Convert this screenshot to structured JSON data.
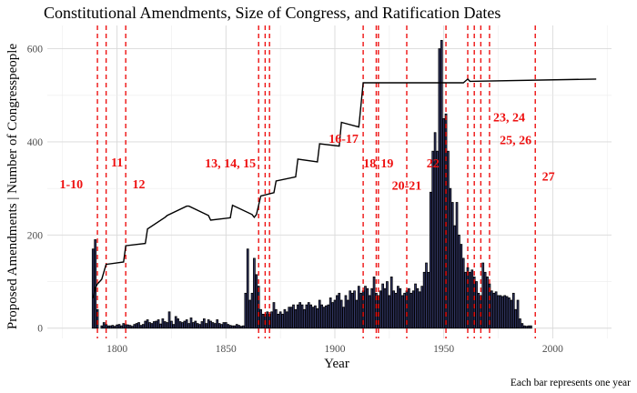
{
  "chart_data": {
    "type": "bar",
    "title": "Constitutional Amendments, Size of Congress, and Ratification Dates",
    "xlabel": "Year",
    "ylabel": "Proposed Amendments | Number of Congresspeople",
    "caption": "Each bar represents one year",
    "xlim": [
      1768,
      2027
    ],
    "ylim": [
      -22,
      650
    ],
    "x_ticks": [
      1800,
      1850,
      1900,
      1950,
      2000
    ],
    "y_ticks": [
      0,
      200,
      400,
      600
    ],
    "grid": true,
    "series": [
      {
        "type": "bar",
        "start_year": 1789,
        "values": [
          170,
          190,
          40,
          0,
          5,
          12,
          8,
          5,
          5,
          6,
          4,
          7,
          8,
          5,
          10,
          8,
          7,
          6,
          4,
          8,
          10,
          12,
          6,
          8,
          15,
          18,
          12,
          10,
          14,
          15,
          18,
          9,
          20,
          14,
          12,
          35,
          15,
          8,
          25,
          20,
          14,
          12,
          15,
          18,
          10,
          22,
          12,
          15,
          10,
          8,
          14,
          20,
          10,
          18,
          15,
          12,
          10,
          18,
          10,
          8,
          12,
          12,
          8,
          6,
          5,
          5,
          8,
          6,
          4,
          5,
          75,
          170,
          60,
          75,
          150,
          115,
          90,
          40,
          30,
          30,
          35,
          30,
          35,
          55,
          40,
          30,
          35,
          30,
          40,
          35,
          45,
          45,
          50,
          40,
          50,
          55,
          50,
          40,
          50,
          55,
          50,
          45,
          48,
          42,
          60,
          50,
          45,
          48,
          50,
          65,
          55,
          60,
          70,
          75,
          60,
          45,
          70,
          60,
          80,
          75,
          80,
          60,
          90,
          75,
          80,
          90,
          85,
          70,
          85,
          110,
          75,
          70,
          80,
          95,
          85,
          100,
          70,
          110,
          80,
          75,
          90,
          85,
          70,
          75,
          80,
          85,
          75,
          80,
          95,
          85,
          78,
          90,
          120,
          140,
          120,
          292,
          380,
          420,
          380,
          600,
          618,
          450,
          460,
          380,
          300,
          270,
          220,
          270,
          200,
          180,
          150,
          120,
          130,
          120,
          125,
          110,
          100,
          75,
          70,
          140,
          120,
          110,
          95,
          80,
          75,
          78,
          70,
          70,
          68,
          70,
          68,
          65,
          60,
          75,
          40,
          60,
          20,
          10,
          5,
          4,
          5,
          5
        ]
      },
      {
        "type": "line",
        "points": [
          [
            1789,
            65
          ],
          [
            1790,
            86
          ],
          [
            1791,
            95
          ],
          [
            1793,
            105
          ],
          [
            1795,
            137
          ],
          [
            1803,
            142
          ],
          [
            1804,
            177
          ],
          [
            1813,
            182
          ],
          [
            1814,
            213
          ],
          [
            1822,
            238
          ],
          [
            1823,
            242
          ],
          [
            1832,
            262
          ],
          [
            1833,
            262
          ],
          [
            1842,
            242
          ],
          [
            1843,
            232
          ],
          [
            1852,
            237
          ],
          [
            1853,
            264
          ],
          [
            1862,
            244
          ],
          [
            1863,
            238
          ],
          [
            1864,
            244
          ],
          [
            1866,
            284
          ],
          [
            1872,
            291
          ],
          [
            1873,
            316
          ],
          [
            1882,
            325
          ],
          [
            1883,
            363
          ],
          [
            1892,
            357
          ],
          [
            1893,
            396
          ],
          [
            1902,
            391
          ],
          [
            1903,
            442
          ],
          [
            1911,
            432
          ],
          [
            1913,
            527
          ],
          [
            1959,
            527
          ],
          [
            1961,
            535
          ],
          [
            1962,
            530
          ],
          [
            2020,
            535
          ]
        ]
      }
    ],
    "ratification_lines": [
      1791,
      1795,
      1804,
      1865,
      1868,
      1870,
      1913,
      1919,
      1920,
      1933,
      1951,
      1961,
      1964,
      1967,
      1971,
      1992
    ],
    "annotations": [
      {
        "text": "1-10",
        "x": 1779,
        "y": 300
      },
      {
        "text": "11",
        "x": 1800,
        "y": 347
      },
      {
        "text": "12",
        "x": 1810,
        "y": 300
      },
      {
        "text": "13, 14, 15",
        "x": 1852,
        "y": 345
      },
      {
        "text": "16-17",
        "x": 1904,
        "y": 398
      },
      {
        "text": "18",
        "x": 1916,
        "y": 345
      },
      {
        "text": "19",
        "x": 1924,
        "y": 345
      },
      {
        "text": "20-21",
        "x": 1933,
        "y": 297
      },
      {
        "text": "22",
        "x": 1945,
        "y": 345
      },
      {
        "text": "23, 24",
        "x": 1980,
        "y": 444
      },
      {
        "text": "25, 26",
        "x": 1983,
        "y": 395
      },
      {
        "text": "27",
        "x": 1998,
        "y": 317
      }
    ]
  }
}
